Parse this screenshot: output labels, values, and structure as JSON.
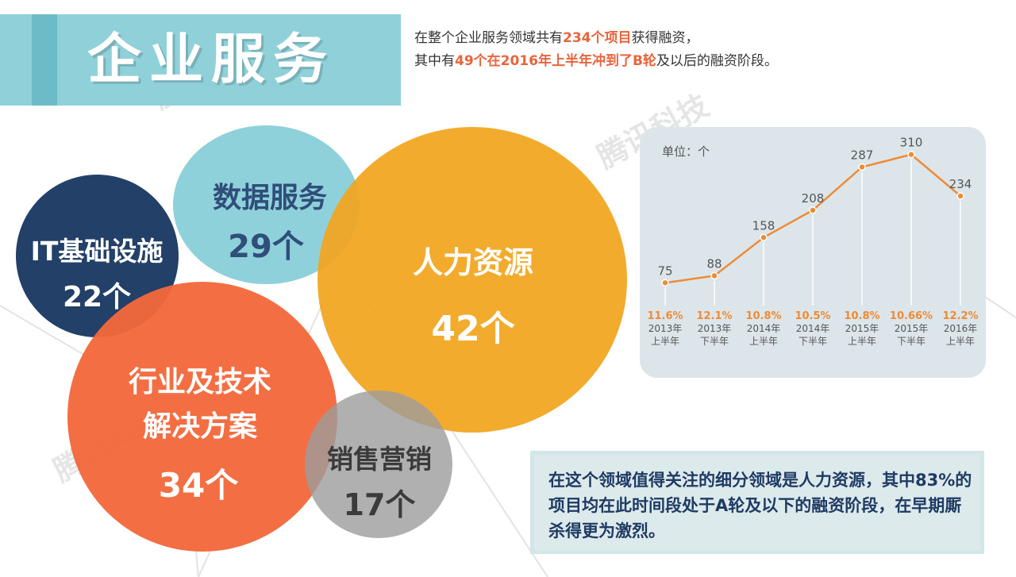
{
  "header": {
    "title": "企业服务"
  },
  "intro": {
    "line1_pre": "在整个企业服务领域共有",
    "line1_hl": "234个项目",
    "line1_post": "获得融资，",
    "line2_pre": "其中有",
    "line2_hl": "49个在2016年上半年冲到了B轮",
    "line2_post": "及以后的融资阶段。"
  },
  "bubbles": [
    {
      "name": "IT基础设施",
      "count": "22个",
      "color": "#1c3a63"
    },
    {
      "name": "数据服务",
      "count": "29个",
      "color": "#86cdd7"
    },
    {
      "name": "人力资源",
      "count": "42个",
      "color": "#f2a51e"
    },
    {
      "name_line1": "行业及技术",
      "name_line2": "解决方案",
      "count": "34个",
      "color": "#f2683a"
    },
    {
      "name": "销售营销",
      "count": "17个",
      "color": "#adadad"
    }
  ],
  "chart_data": {
    "type": "line",
    "unit_label": "单位：个",
    "categories": [
      "2013年上半年",
      "2013年下半年",
      "2014年上半年",
      "2014年下半年",
      "2015年上半年",
      "2015年下半年",
      "2016年上半年"
    ],
    "category_lines": [
      [
        "2013年",
        "上半年"
      ],
      [
        "2013年",
        "下半年"
      ],
      [
        "2014年",
        "上半年"
      ],
      [
        "2014年",
        "下半年"
      ],
      [
        "2015年",
        "上半年"
      ],
      [
        "2015年",
        "下半年"
      ],
      [
        "2016年",
        "上半年"
      ]
    ],
    "values": [
      75,
      88,
      158,
      208,
      287,
      310,
      234
    ],
    "value_labels": [
      "75",
      "88",
      "158",
      "208",
      "287",
      "310",
      "234"
    ],
    "percentages": [
      "11.6%",
      "12.1%",
      "10.8%",
      "10.5%",
      "10.8%",
      "10.66%",
      "12.2%"
    ],
    "ylim": [
      0,
      340
    ],
    "line_color": "#ef8a35",
    "percent_color": "#ef8a35"
  },
  "note": {
    "text": "在这个领域值得关注的细分领域是人力资源，其中83%的项目均在此时间段处于A轮及以下的融资阶段，在早期厮杀得更为激烈。"
  },
  "watermark": {
    "text": "腾讯科技"
  }
}
